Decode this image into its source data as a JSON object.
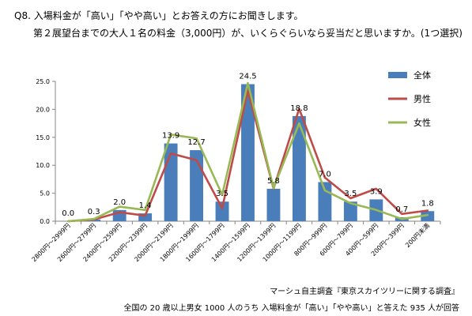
{
  "question": {
    "line1": "Q8. 入場料金が「高い」「やや高い」とお答えの方にお聞きします。",
    "line2": "第２展望台までの大人１名の料金（3,000円）が、いくらぐらいなら妥当だと思いますか。(1つ選択)"
  },
  "source": "マーシュ自主調査『東京スカイツリーに関する調査』",
  "footnote": "全国の 20 歳以上男女 1000 人のうち 入場料金が「高い」「やや高い」と答えた 935 人が回答",
  "chart_data": {
    "type": "bar",
    "categories": [
      "2800円～2999円",
      "2600円～2799円",
      "2400円～2599円",
      "2200円～2399円",
      "2000円～2199円",
      "1800円～1999円",
      "1600円～1799円",
      "1400円～1599円",
      "1200円～1399円",
      "1000円～1199円",
      "800円～999円",
      "600円～799円",
      "400円～599円",
      "200円～399円",
      "200円未満"
    ],
    "yticks": [
      "0.0",
      "5.0",
      "10.0",
      "15.0",
      "20.0",
      "25.0"
    ],
    "ylim": [
      0,
      25
    ],
    "legend_position": "top-right",
    "series": [
      {
        "name": "全体",
        "kind": "bar",
        "color": "#4a7ebb",
        "values": [
          0.0,
          0.3,
          2.0,
          1.4,
          13.9,
          12.7,
          3.5,
          24.5,
          5.8,
          18.8,
          7.0,
          3.5,
          3.9,
          0.7,
          1.8
        ],
        "labels": [
          "0.0",
          "0.3",
          "2.0",
          "1.4",
          "13.9",
          "12.7",
          "3.5",
          "24.5",
          "5.8",
          "18.8",
          "7.0",
          "3.5",
          "3.9",
          "0.7",
          "1.8"
        ]
      },
      {
        "name": "男性",
        "kind": "line",
        "color": "#be4b48",
        "values": [
          0.0,
          0.3,
          1.6,
          1.0,
          12.1,
          10.9,
          2.3,
          23.4,
          5.8,
          20.1,
          7.8,
          4.1,
          5.8,
          1.3,
          1.9
        ]
      },
      {
        "name": "女性",
        "kind": "line",
        "color": "#98b954",
        "values": [
          0.0,
          0.4,
          2.6,
          2.0,
          15.5,
          14.8,
          4.7,
          24.7,
          5.9,
          17.5,
          5.5,
          3.2,
          2.0,
          0.4,
          1.1
        ]
      }
    ]
  }
}
